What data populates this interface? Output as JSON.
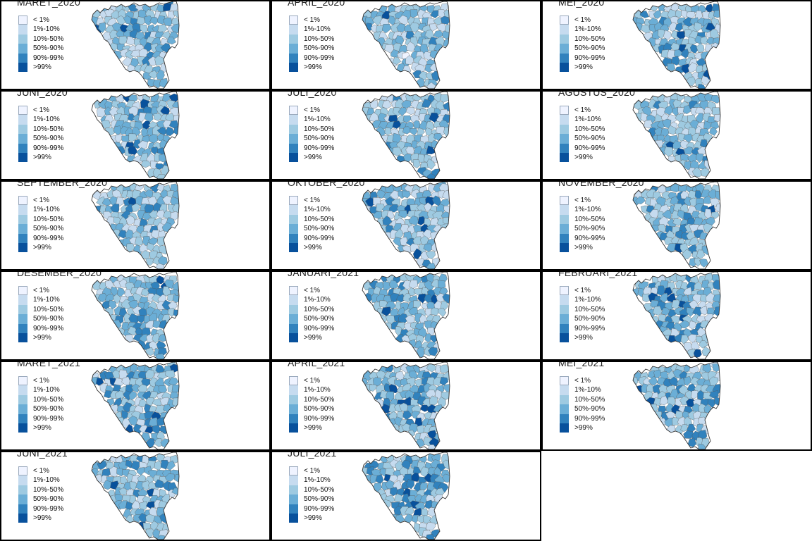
{
  "legend": {
    "labels": [
      "< 1%",
      "1%-10%",
      "10%-50%",
      "50%-90%",
      "90%-99%",
      ">99%"
    ],
    "colors": [
      "#eff3ff",
      "#c6dbef",
      "#9ecae1",
      "#6baed6",
      "#3182bd",
      "#08519c"
    ]
  },
  "style": {
    "border_color": "#000000",
    "region_stroke": "#555555",
    "outline_stroke": "#333333"
  },
  "panels": [
    {
      "title": "MARET_2020",
      "map_icon": "choropleth-map-icon",
      "shade": 0.3
    },
    {
      "title": "APRIL_2020",
      "map_icon": "choropleth-map-icon",
      "shade": 0.28
    },
    {
      "title": "MEI_2020",
      "map_icon": "choropleth-map-icon",
      "shade": 0.3
    },
    {
      "title": "JUNI_2020",
      "map_icon": "choropleth-map-icon",
      "shade": 0.29
    },
    {
      "title": "JULI_2020",
      "map_icon": "choropleth-map-icon",
      "shade": 0.31
    },
    {
      "title": "AGUSTUS_2020",
      "map_icon": "choropleth-map-icon",
      "shade": 0.33
    },
    {
      "title": "SEPTEMBER_2020",
      "map_icon": "choropleth-map-icon",
      "shade": 0.36
    },
    {
      "title": "OKTOBER_2020",
      "map_icon": "choropleth-map-icon",
      "shade": 0.37
    },
    {
      "title": "NOVEMBER_2020",
      "map_icon": "choropleth-map-icon",
      "shade": 0.38
    },
    {
      "title": "DESEMBER_2020",
      "map_icon": "choropleth-map-icon",
      "shade": 0.42
    },
    {
      "title": "JANUARI_2021",
      "map_icon": "choropleth-map-icon",
      "shade": 0.43
    },
    {
      "title": "FEBRUARI_2021",
      "map_icon": "choropleth-map-icon",
      "shade": 0.44
    },
    {
      "title": "MARET_2021",
      "map_icon": "choropleth-map-icon",
      "shade": 0.45
    },
    {
      "title": "APRIL_2021",
      "map_icon": "choropleth-map-icon",
      "shade": 0.44
    },
    {
      "title": "MEI_2021",
      "map_icon": "choropleth-map-icon",
      "shade": 0.42
    },
    {
      "title": "JUNI_2021",
      "map_icon": "choropleth-map-icon",
      "shade": 0.43
    },
    {
      "title": "JULI_2021",
      "map_icon": "choropleth-map-icon",
      "shade": 0.44
    }
  ]
}
